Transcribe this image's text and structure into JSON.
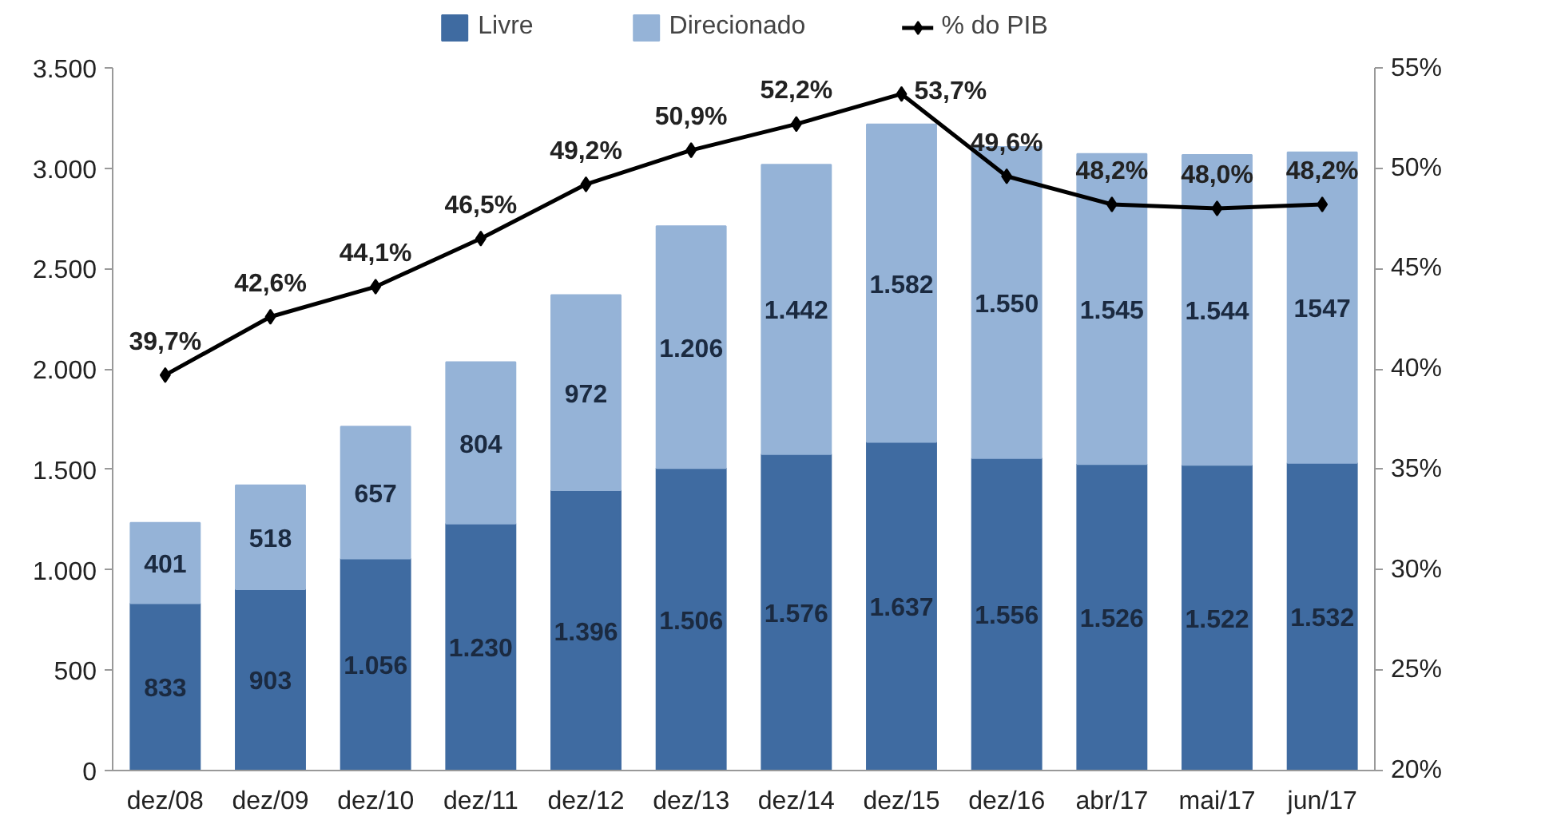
{
  "chart_data": {
    "type": "bar",
    "stacked": true,
    "categories": [
      "dez/08",
      "dez/09",
      "dez/10",
      "dez/11",
      "dez/12",
      "dez/13",
      "dez/14",
      "dez/15",
      "dez/16",
      "abr/17",
      "mai/17",
      "jun/17"
    ],
    "series": [
      {
        "name": "Livre",
        "color": "#3f6ba1",
        "values": [
          833,
          903,
          1056,
          1230,
          1396,
          1506,
          1576,
          1637,
          1556,
          1526,
          1522,
          1532
        ],
        "value_labels": [
          "833",
          "903",
          "1.056",
          "1.230",
          "1.396",
          "1.506",
          "1.576",
          "1.637",
          "1.556",
          "1.526",
          "1.522",
          "1.532"
        ]
      },
      {
        "name": "Direcionado",
        "color": "#95b3d7",
        "values": [
          401,
          518,
          657,
          804,
          972,
          1206,
          1442,
          1582,
          1550,
          1545,
          1544,
          1547
        ],
        "value_labels": [
          "401",
          "518",
          "657",
          "804",
          "972",
          "1.206",
          "1.442",
          "1.582",
          "1.550",
          "1.545",
          "1.544",
          "1547"
        ]
      },
      {
        "name": "% do PIB",
        "type": "line",
        "axis": "y2",
        "color": "#000000",
        "marker": "diamond",
        "values": [
          39.7,
          42.6,
          44.1,
          46.5,
          49.2,
          50.9,
          52.2,
          53.7,
          49.6,
          48.2,
          48.0,
          48.2
        ],
        "value_labels": [
          "39,7%",
          "42,6%",
          "44,1%",
          "46,5%",
          "49,2%",
          "50,9%",
          "52,2%",
          "53,7%",
          "49,6%",
          "48,2%",
          "48,0%",
          "48,2%"
        ]
      }
    ],
    "ylim": [
      0,
      3500
    ],
    "yticks": [
      0,
      500,
      {
        "value": 1000,
        "label": "1.000"
      },
      {
        "value": 1500,
        "label": "1.500"
      },
      {
        "value": 2000,
        "label": "2.000"
      },
      {
        "value": 2500,
        "label": "2.500"
      },
      {
        "value": 3000,
        "label": "3.000"
      },
      {
        "value": 3500,
        "label": "3.500"
      }
    ],
    "y2lim": [
      20,
      55
    ],
    "y2ticks": [
      {
        "value": 20,
        "label": "20%"
      },
      {
        "value": 25,
        "label": "25%"
      },
      {
        "value": 30,
        "label": "30%"
      },
      {
        "value": 35,
        "label": "35%"
      },
      {
        "value": 40,
        "label": "40%"
      },
      {
        "value": 45,
        "label": "45%"
      },
      {
        "value": 50,
        "label": "50%"
      },
      {
        "value": 55,
        "label": "55%"
      }
    ],
    "grid": false,
    "legend": "top"
  }
}
